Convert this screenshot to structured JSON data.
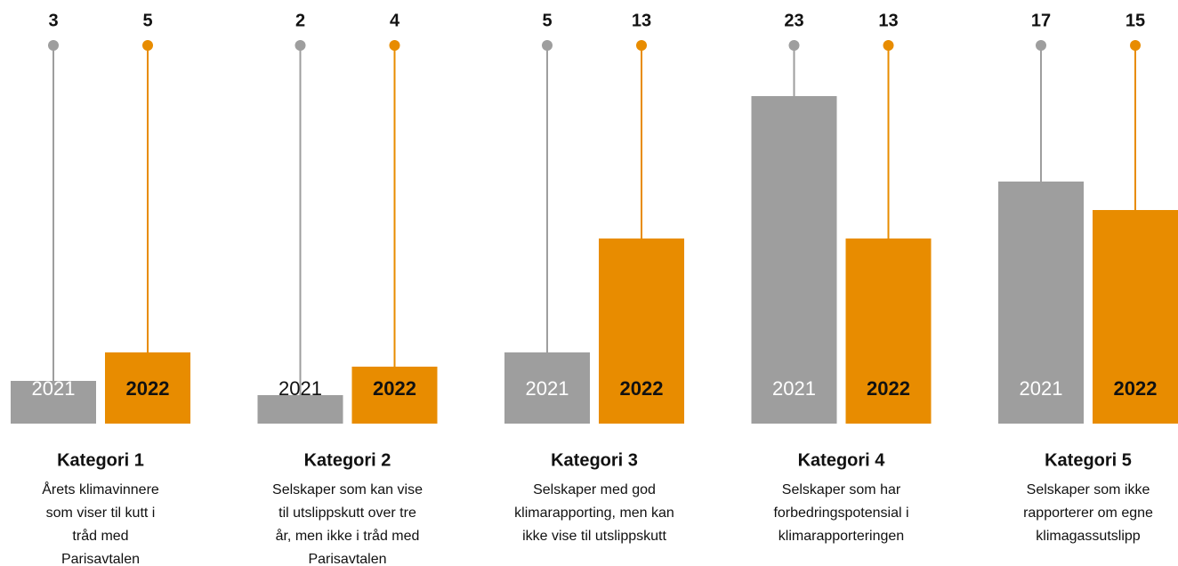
{
  "chart_data": {
    "type": "bar",
    "categories": [
      "Kategori 1",
      "Kategori 2",
      "Kategori 3",
      "Kategori 4",
      "Kategori 5"
    ],
    "descriptions": [
      [
        "Årets klimavinnere",
        "som viser til kutt i",
        "tråd med",
        "Parisavtalen"
      ],
      [
        "Selskaper som kan vise",
        "til utslippskutt over tre",
        "år, men ikke i tråd med",
        "Parisavtalen"
      ],
      [
        "Selskaper med god",
        "klimarapporting, men kan",
        "ikke vise til utslippskutt"
      ],
      [
        "Selskaper som har",
        "forbedringspotensial i",
        "klimarapporteringen"
      ],
      [
        "Selskaper som ikke",
        "rapporterer om egne",
        "klimagassutslipp"
      ]
    ],
    "series": [
      {
        "name": "2021",
        "color": "#9e9e9e",
        "values": [
          3,
          2,
          5,
          23,
          17
        ]
      },
      {
        "name": "2022",
        "color": "#e88c00",
        "values": [
          5,
          4,
          13,
          13,
          15
        ]
      }
    ]
  }
}
